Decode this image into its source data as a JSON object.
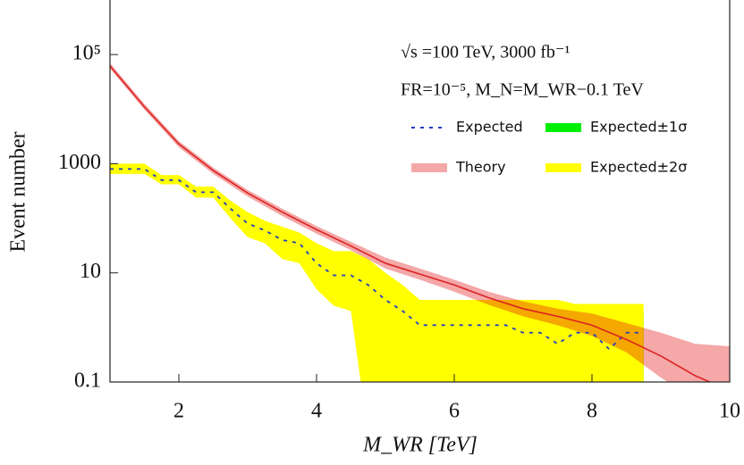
{
  "chart_data": {
    "type": "line",
    "xlabel": "M_WR [TeV]",
    "ylabel": "Event number",
    "annotations": [
      "√s =100 TeV, 3000 fb⁻¹",
      "FR=10⁻⁵, M_N=M_WR−0.1 TeV"
    ],
    "xlim": [
      1,
      10
    ],
    "ylim": [
      0.1,
      1000000
    ],
    "log_y": true,
    "xticks": [
      2,
      4,
      6,
      8,
      10
    ],
    "yticks": [
      0.1,
      10,
      1000,
      {
        "value": 100000,
        "label": "10⁵"
      }
    ],
    "series": [
      {
        "name": "Expected",
        "color": "#1f3fbf",
        "style": "dashed",
        "x": [
          1,
          1.25,
          1.5,
          1.75,
          2,
          2.25,
          2.5,
          2.75,
          3,
          3.25,
          3.5,
          3.75,
          4,
          4.25,
          4.5,
          4.75,
          5,
          5.25,
          5.5,
          5.75,
          6,
          6.25,
          6.5,
          6.75,
          7,
          7.25,
          7.5,
          7.75,
          8,
          8.25,
          8.5,
          8.75
        ],
        "values": [
          800,
          800,
          800,
          500,
          500,
          300,
          300,
          150,
          80,
          60,
          40,
          35,
          15,
          9,
          9,
          6,
          3.2,
          2,
          1.1,
          1.1,
          1.1,
          1.1,
          1.1,
          1.1,
          0.8,
          0.8,
          0.5,
          0.8,
          0.8,
          0.4,
          0.8,
          0.8
        ]
      },
      {
        "name": "Expected±1σ",
        "color": "#00ee00",
        "style": "band",
        "x": [
          1,
          1.25,
          1.5,
          1.75,
          2,
          2.25,
          2.5,
          2.75,
          3,
          3.25,
          3.5,
          3.75,
          4,
          4.25,
          4.5,
          4.75,
          5,
          5.25,
          5.5,
          5.75,
          6,
          6.25,
          6.5,
          6.75,
          7,
          7.25,
          7.5,
          7.75,
          8,
          8.25,
          8.5,
          8.75
        ],
        "low": [
          700,
          700,
          700,
          450,
          450,
          260,
          260,
          120,
          60,
          45,
          28,
          25,
          9,
          5,
          5,
          3,
          1.2,
          0.4,
          0.01,
          0.01,
          0.01,
          0.01,
          0.01,
          0.01,
          0.01,
          0.01,
          0.01,
          0.01,
          0.01,
          0.01,
          0.01,
          0.01
        ],
        "high": [
          900,
          900,
          900,
          560,
          560,
          340,
          340,
          180,
          100,
          75,
          55,
          45,
          25,
          15,
          15,
          11,
          6,
          4,
          2.5,
          2.5,
          2.5,
          2.5,
          2.5,
          2.5,
          2.5,
          2.2,
          1.8,
          1.8,
          1.8,
          1.8,
          1.8,
          1.8
        ]
      },
      {
        "name": "Theory",
        "color": "#f4a8a8",
        "line_color": "#dd2222",
        "style": "band-line",
        "x": [
          1,
          1.5,
          2,
          2.5,
          3,
          3.5,
          4,
          4.5,
          5,
          5.5,
          6,
          6.5,
          7,
          7.5,
          8,
          8.5,
          9,
          9.5,
          10
        ],
        "values": [
          62000,
          11000,
          2300,
          750,
          290,
          130,
          62,
          31,
          15,
          9.5,
          6,
          3.5,
          2.2,
          1.6,
          1.1,
          0.6,
          0.3,
          0.13,
          0.07
        ],
        "low": [
          55000,
          9800,
          2000,
          650,
          250,
          110,
          52,
          26,
          12,
          7.5,
          4.5,
          2.6,
          1.6,
          1.1,
          0.7,
          0.35,
          0.12,
          0.05,
          0.03
        ],
        "high": [
          70000,
          12500,
          2600,
          850,
          330,
          150,
          72,
          37,
          19,
          12,
          7.5,
          4.5,
          3,
          2.2,
          1.8,
          1.2,
          0.8,
          0.5,
          0.45
        ]
      },
      {
        "name": "Expected±2σ",
        "color": "#ffff00",
        "style": "band",
        "x": [
          1,
          1.25,
          1.5,
          1.75,
          2,
          2.25,
          2.5,
          2.75,
          3,
          3.25,
          3.5,
          3.75,
          4,
          4.25,
          4.5,
          4.75,
          5,
          5.25,
          5.5,
          5.75,
          6,
          6.25,
          6.5,
          6.75,
          7,
          7.25,
          7.5,
          7.75,
          8,
          8.25,
          8.5,
          8.75
        ],
        "low": [
          650,
          650,
          650,
          420,
          420,
          240,
          240,
          100,
          45,
          35,
          18,
          15,
          5,
          2.5,
          2,
          0.01,
          0.01,
          0.01,
          0.01,
          0.01,
          0.01,
          0.01,
          0.01,
          0.01,
          0.01,
          0.01,
          0.01,
          0.01,
          0.01,
          0.01,
          0.01,
          0.01
        ],
        "high": [
          1000,
          1000,
          1000,
          620,
          620,
          380,
          380,
          210,
          130,
          90,
          70,
          55,
          35,
          25,
          25,
          18,
          10,
          6,
          3.2,
          3.2,
          3.2,
          3.2,
          3.2,
          3.2,
          3.2,
          3.2,
          3.2,
          2.7,
          2.7,
          2.7,
          2.7,
          2.7
        ]
      }
    ]
  }
}
